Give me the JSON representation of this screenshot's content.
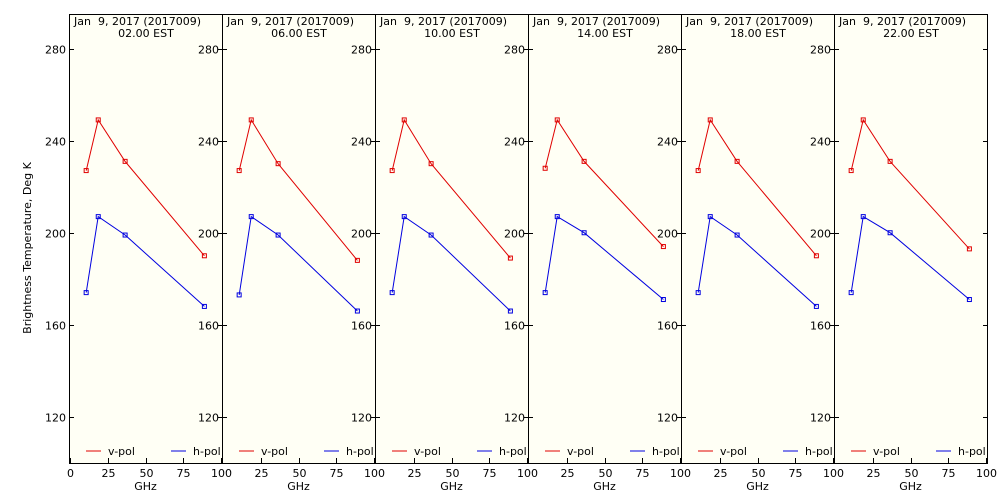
{
  "ylabel": "Brightness Temperature, Deg K",
  "chart_data": [
    {
      "type": "line",
      "title": "Jan  9, 2017 (2017009)",
      "subtitle": "02.00 EST",
      "xlabel": "GHz",
      "x_ticks": [
        "0",
        "25",
        "50",
        "75",
        "100"
      ],
      "y_ticks": [
        "120",
        "160",
        "200",
        "240",
        "280"
      ],
      "xlim": [
        0,
        100
      ],
      "ylim": [
        100,
        295
      ],
      "legend": "bottom",
      "x": [
        10.7,
        18.7,
        36.5,
        89.0
      ],
      "series": [
        {
          "name": "v-pol",
          "color": "#e00000",
          "values": [
            227,
            249,
            231,
            190
          ]
        },
        {
          "name": "h-pol",
          "color": "#0000e0",
          "values": [
            174,
            207,
            199,
            168
          ]
        }
      ]
    },
    {
      "type": "line",
      "title": "Jan  9, 2017 (2017009)",
      "subtitle": "06.00 EST",
      "xlabel": "GHz",
      "x_ticks": [
        "25",
        "50",
        "75",
        "100"
      ],
      "y_ticks": [
        "120",
        "160",
        "200",
        "240",
        "280"
      ],
      "xlim": [
        0,
        100
      ],
      "ylim": [
        100,
        295
      ],
      "legend": "bottom",
      "x": [
        10.7,
        18.7,
        36.5,
        89.0
      ],
      "series": [
        {
          "name": "v-pol",
          "color": "#e00000",
          "values": [
            227,
            249,
            230,
            188
          ]
        },
        {
          "name": "h-pol",
          "color": "#0000e0",
          "values": [
            173,
            207,
            199,
            166
          ]
        }
      ]
    },
    {
      "type": "line",
      "title": "Jan  9, 2017 (2017009)",
      "subtitle": "10.00 EST",
      "xlabel": "GHz",
      "x_ticks": [
        "25",
        "50",
        "75",
        "100"
      ],
      "y_ticks": [
        "120",
        "160",
        "200",
        "240",
        "280"
      ],
      "xlim": [
        0,
        100
      ],
      "ylim": [
        100,
        295
      ],
      "legend": "bottom",
      "x": [
        10.7,
        18.7,
        36.5,
        89.0
      ],
      "series": [
        {
          "name": "v-pol",
          "color": "#e00000",
          "values": [
            227,
            249,
            230,
            189
          ]
        },
        {
          "name": "h-pol",
          "color": "#0000e0",
          "values": [
            174,
            207,
            199,
            166
          ]
        }
      ]
    },
    {
      "type": "line",
      "title": "Jan  9, 2017 (2017009)",
      "subtitle": "14.00 EST",
      "xlabel": "GHz",
      "x_ticks": [
        "25",
        "50",
        "75",
        "100"
      ],
      "y_ticks": [
        "120",
        "160",
        "200",
        "240",
        "280"
      ],
      "xlim": [
        0,
        100
      ],
      "ylim": [
        100,
        295
      ],
      "legend": "bottom",
      "x": [
        10.7,
        18.7,
        36.5,
        89.0
      ],
      "series": [
        {
          "name": "v-pol",
          "color": "#e00000",
          "values": [
            228,
            249,
            231,
            194
          ]
        },
        {
          "name": "h-pol",
          "color": "#0000e0",
          "values": [
            174,
            207,
            200,
            171
          ]
        }
      ]
    },
    {
      "type": "line",
      "title": "Jan  9, 2017 (2017009)",
      "subtitle": "18.00 EST",
      "xlabel": "GHz",
      "x_ticks": [
        "25",
        "50",
        "75",
        "100"
      ],
      "y_ticks": [
        "120",
        "160",
        "200",
        "240",
        "280"
      ],
      "xlim": [
        0,
        100
      ],
      "ylim": [
        100,
        295
      ],
      "legend": "bottom",
      "x": [
        10.7,
        18.7,
        36.5,
        89.0
      ],
      "series": [
        {
          "name": "v-pol",
          "color": "#e00000",
          "values": [
            227,
            249,
            231,
            190
          ]
        },
        {
          "name": "h-pol",
          "color": "#0000e0",
          "values": [
            174,
            207,
            199,
            168
          ]
        }
      ]
    },
    {
      "type": "line",
      "title": "Jan  9, 2017 (2017009)",
      "subtitle": "22.00 EST",
      "xlabel": "GHz",
      "x_ticks": [
        "25",
        "50",
        "75",
        "100"
      ],
      "y_ticks": [
        "120",
        "160",
        "200",
        "240",
        "280"
      ],
      "xlim": [
        0,
        100
      ],
      "ylim": [
        100,
        295
      ],
      "legend": "bottom",
      "x": [
        10.7,
        18.7,
        36.5,
        89.0
      ],
      "series": [
        {
          "name": "v-pol",
          "color": "#e00000",
          "values": [
            227,
            249,
            231,
            193
          ]
        },
        {
          "name": "h-pol",
          "color": "#0000e0",
          "values": [
            174,
            207,
            200,
            171
          ]
        }
      ]
    }
  ]
}
